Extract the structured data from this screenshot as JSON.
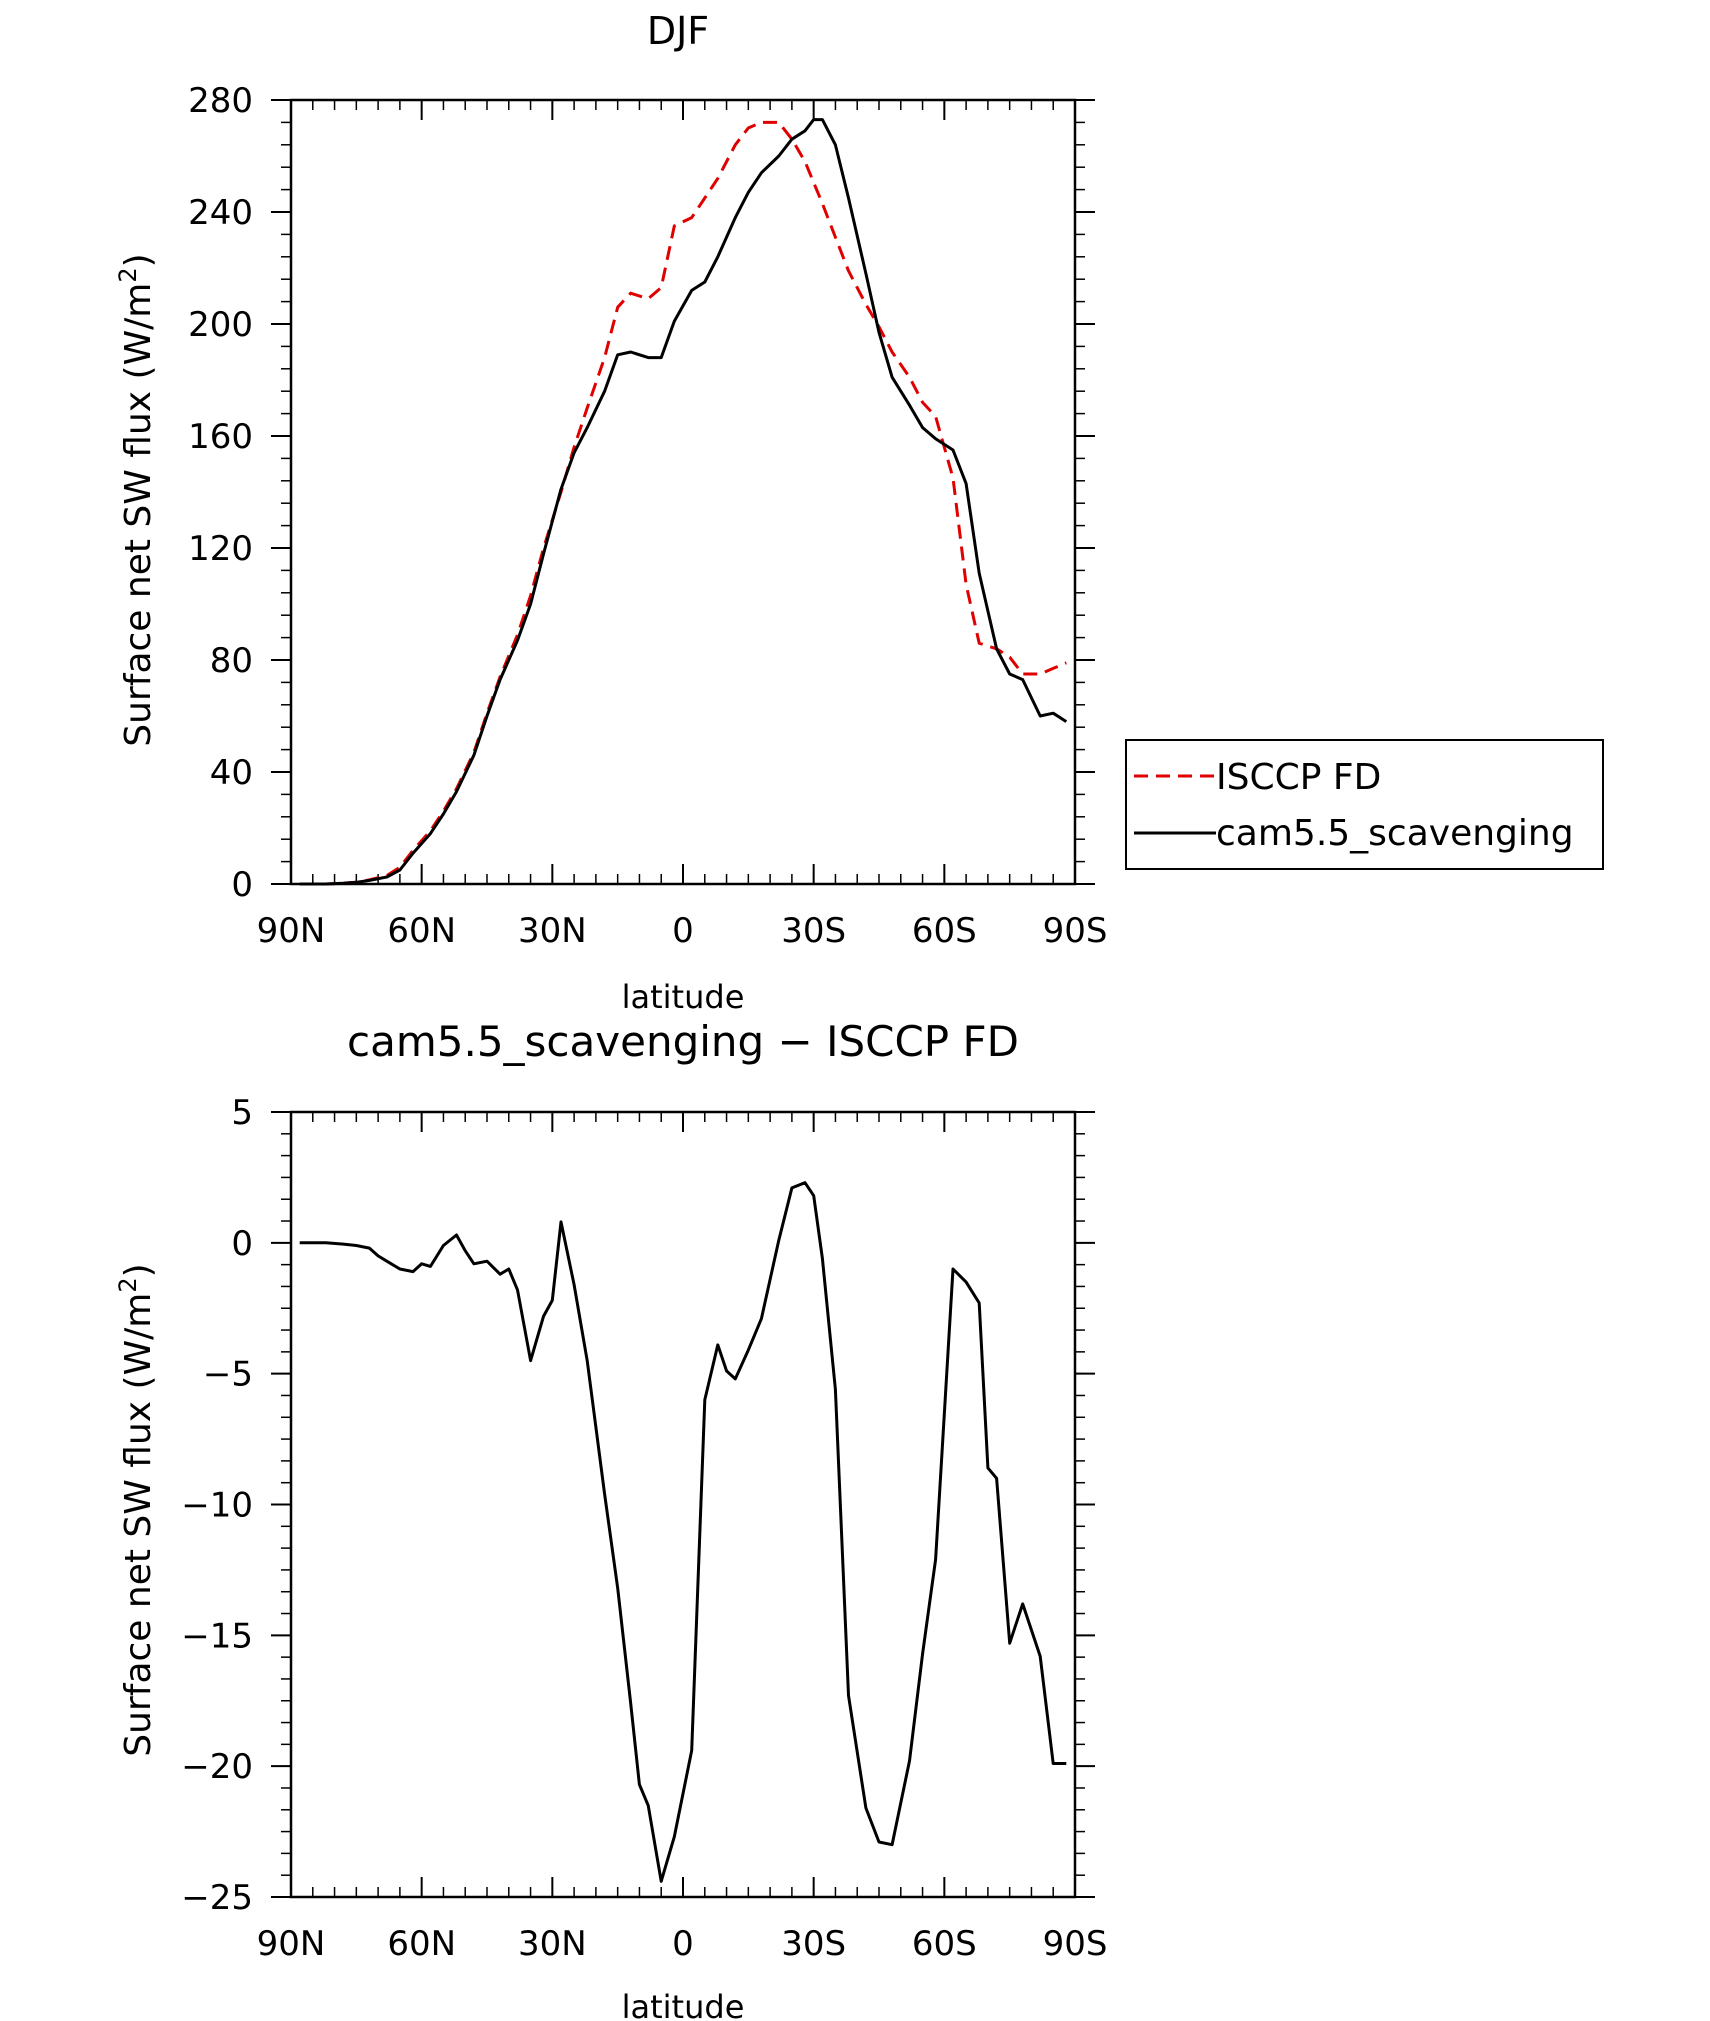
{
  "chart_data": [
    {
      "type": "line",
      "title": "DJF",
      "xlabel": "latitude",
      "ylabel_main": "Surface net SW flux (W/m",
      "ylabel_sup": "2",
      "ylabel_close": ")",
      "xlim": [
        90,
        -90
      ],
      "ylim": [
        0,
        280
      ],
      "x_ticks": [
        {
          "value": 90,
          "label": "90N"
        },
        {
          "value": 60,
          "label": "60N"
        },
        {
          "value": 30,
          "label": "30N"
        },
        {
          "value": 0,
          "label": "0"
        },
        {
          "value": -30,
          "label": "30S"
        },
        {
          "value": -60,
          "label": "60S"
        },
        {
          "value": -90,
          "label": "90S"
        }
      ],
      "y_ticks": [
        0,
        40,
        80,
        120,
        160,
        200,
        240,
        280
      ],
      "y_tick_labels": [
        "0",
        "40",
        "80",
        "120",
        "160",
        "200",
        "240",
        "280"
      ],
      "legend": {
        "placement": "right",
        "entries": [
          "ISCCP FD",
          "cam5.5_scavenging"
        ]
      },
      "series": [
        {
          "name": "ISCCP FD",
          "color": "#e00000",
          "dash": true,
          "x": [
            88,
            85,
            82,
            78,
            75,
            72,
            68,
            65,
            62,
            58,
            55,
            52,
            48,
            45,
            42,
            38,
            35,
            32,
            28,
            25,
            22,
            18,
            15,
            12,
            8,
            5,
            2,
            -2,
            -5,
            -8,
            -12,
            -15,
            -18,
            -22,
            -25,
            -28,
            -32,
            -35,
            -38,
            -42,
            -45,
            -48,
            -52,
            -55,
            -58,
            -62,
            -65,
            -68,
            -72,
            -75,
            -78,
            -82,
            -85,
            -88
          ],
          "values": [
            0,
            0,
            0,
            0.3,
            0.6,
            1.5,
            3,
            6,
            12,
            19,
            26,
            34,
            47,
            61,
            74,
            89,
            103,
            120,
            140,
            156,
            170,
            188,
            206,
            211,
            209,
            213,
            235,
            238,
            245,
            252,
            264,
            270,
            272,
            272,
            266,
            258,
            243,
            231,
            219,
            207,
            199,
            190,
            181,
            172,
            167,
            145,
            107,
            86,
            84,
            81,
            75,
            75,
            77,
            79
          ]
        },
        {
          "name": "cam5.5_scavenging",
          "color": "#000000",
          "dash": false,
          "x": [
            88,
            85,
            82,
            78,
            75,
            72,
            68,
            65,
            62,
            58,
            55,
            52,
            48,
            45,
            42,
            38,
            35,
            32,
            28,
            25,
            22,
            18,
            15,
            12,
            8,
            5,
            2,
            -2,
            -5,
            -8,
            -12,
            -15,
            -18,
            -22,
            -25,
            -28,
            -30,
            -32,
            -35,
            -38,
            -42,
            -45,
            -48,
            -52,
            -55,
            -58,
            -62,
            -65,
            -68,
            -72,
            -75,
            -78,
            -82,
            -85,
            -88
          ],
          "values": [
            0,
            0,
            0,
            0.3,
            0.6,
            1.3,
            2.5,
            5,
            11,
            18,
            25,
            33,
            46,
            60,
            73,
            87,
            100,
            118,
            141,
            154,
            163,
            176,
            189,
            190,
            188,
            188,
            201,
            212,
            215,
            224,
            238,
            247,
            254,
            260,
            266,
            269,
            273,
            273,
            264,
            245,
            218,
            197,
            181,
            171,
            163,
            159,
            155,
            143,
            111,
            84,
            75,
            73,
            60,
            61,
            58
          ]
        }
      ]
    },
    {
      "type": "line",
      "title": "cam5.5_scavenging − ISCCP FD",
      "xlabel": "latitude",
      "ylabel_main": "Surface net SW flux (W/m",
      "ylabel_sup": "2",
      "ylabel_close": ")",
      "xlim": [
        90,
        -90
      ],
      "ylim": [
        -25,
        5
      ],
      "x_ticks": [
        {
          "value": 90,
          "label": "90N"
        },
        {
          "value": 60,
          "label": "60N"
        },
        {
          "value": 30,
          "label": "30N"
        },
        {
          "value": 0,
          "label": "0"
        },
        {
          "value": -30,
          "label": "30S"
        },
        {
          "value": -60,
          "label": "60S"
        },
        {
          "value": -90,
          "label": "90S"
        }
      ],
      "y_ticks": [
        5,
        0,
        -5,
        -10,
        -15,
        -20,
        -25
      ],
      "y_tick_labels": [
        "5",
        "0",
        "−5",
        "−10",
        "−15",
        "−20",
        "−25"
      ],
      "series": [
        {
          "color": "#000000",
          "dash": false,
          "x": [
            88,
            85,
            82,
            78,
            75,
            72,
            70,
            68,
            65,
            62,
            60,
            58,
            55,
            52,
            50,
            48,
            45,
            42,
            40,
            38,
            35,
            32,
            30,
            28,
            25,
            22,
            18,
            15,
            12,
            10,
            8,
            5,
            2,
            -2,
            -5,
            -8,
            -10,
            -12,
            -15,
            -18,
            -22,
            -25,
            -28,
            -30,
            -32,
            -35,
            -38,
            -42,
            -45,
            -48,
            -52,
            -55,
            -58,
            -62,
            -65,
            -68,
            -70,
            -72,
            -75,
            -78,
            -82,
            -85,
            -88
          ],
          "values": [
            0,
            0,
            0,
            -0.05,
            -0.1,
            -0.2,
            -0.5,
            -0.7,
            -1.0,
            -1.1,
            -0.8,
            -0.9,
            -0.1,
            0.3,
            -0.3,
            -0.8,
            -0.7,
            -1.2,
            -1.0,
            -1.8,
            -4.5,
            -2.8,
            -2.2,
            0.8,
            -1.6,
            -4.5,
            -9.6,
            -13.2,
            -17.6,
            -20.7,
            -21.5,
            -24.4,
            -22.7,
            -19.4,
            -6.0,
            -3.9,
            -4.9,
            -5.2,
            -4.1,
            -2.9,
            0.1,
            2.1,
            2.3,
            1.8,
            -0.6,
            -5.6,
            -17.3,
            -21.6,
            -22.9,
            -23.0,
            -19.8,
            -15.7,
            -12.1,
            -1.0,
            -1.5,
            -2.3,
            -8.6,
            -9.0,
            -15.3,
            -13.8,
            -15.8,
            -19.9,
            -19.9
          ]
        }
      ]
    }
  ]
}
